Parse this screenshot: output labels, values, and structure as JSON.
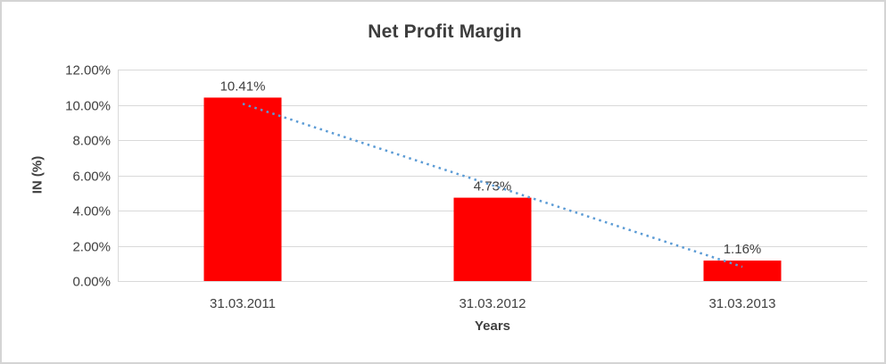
{
  "chart_data": {
    "type": "bar",
    "title": "Net Profit Margin",
    "categories": [
      "31.03.2011",
      "31.03.2012",
      "31.03.2013"
    ],
    "values": [
      10.41,
      4.73,
      1.16
    ],
    "data_labels": [
      "10.41%",
      "4.73%",
      "1.16%"
    ],
    "xlabel": "Years",
    "ylabel": "IN (%)",
    "ylim": [
      0,
      12
    ],
    "y_tick_step": 2,
    "y_tick_labels": [
      "0.00%",
      "2.00%",
      "4.00%",
      "6.00%",
      "8.00%",
      "10.00%",
      "12.00%"
    ],
    "grid": true,
    "legend": "none",
    "bar_color": "#ff0000",
    "gridline_color": "#d9d9d9",
    "text_color": "#404040",
    "trendline": {
      "type": "linear",
      "style": "dotted",
      "color": "#5b9bd5"
    }
  }
}
